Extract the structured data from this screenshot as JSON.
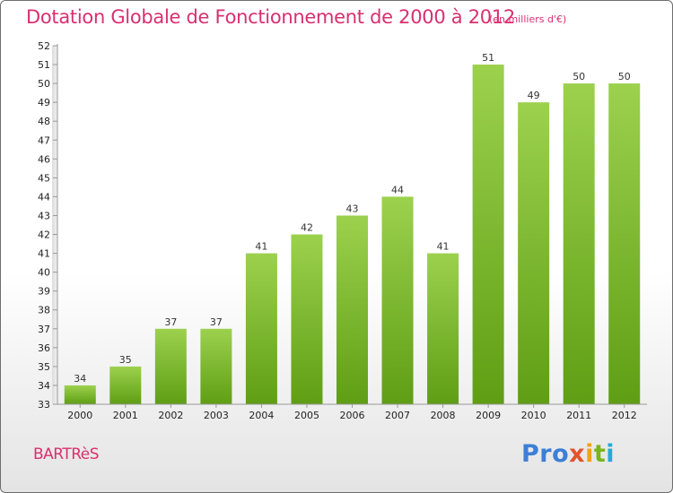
{
  "header": {
    "title": "Dotation Globale de Fonctionnement de 2000 à 2012",
    "unit": "(en milliers d'€)"
  },
  "footer": {
    "commune": "BARTRèS",
    "logo": [
      "Pro",
      "x",
      "i",
      "t",
      "i"
    ]
  },
  "colors": {
    "title": "#d9306d",
    "bar_light": "#9cd14e",
    "bar_dark": "#5f9e14"
  },
  "chart_data": {
    "type": "bar",
    "title": "Dotation Globale de Fonctionnement de 2000 à 2012",
    "subtitle": "(en milliers d'€)",
    "xlabel": "",
    "ylabel": "",
    "categories": [
      "2000",
      "2001",
      "2002",
      "2003",
      "2004",
      "2005",
      "2006",
      "2007",
      "2008",
      "2009",
      "2010",
      "2011",
      "2012"
    ],
    "values": [
      34,
      35,
      37,
      37,
      41,
      42,
      43,
      44,
      41,
      51,
      49,
      50,
      50
    ],
    "ylim": [
      33,
      52
    ],
    "yticks": [
      33,
      34,
      35,
      36,
      37,
      38,
      39,
      40,
      41,
      42,
      43,
      44,
      45,
      46,
      47,
      48,
      49,
      50,
      51,
      52
    ],
    "grid": false,
    "legend": "none"
  }
}
